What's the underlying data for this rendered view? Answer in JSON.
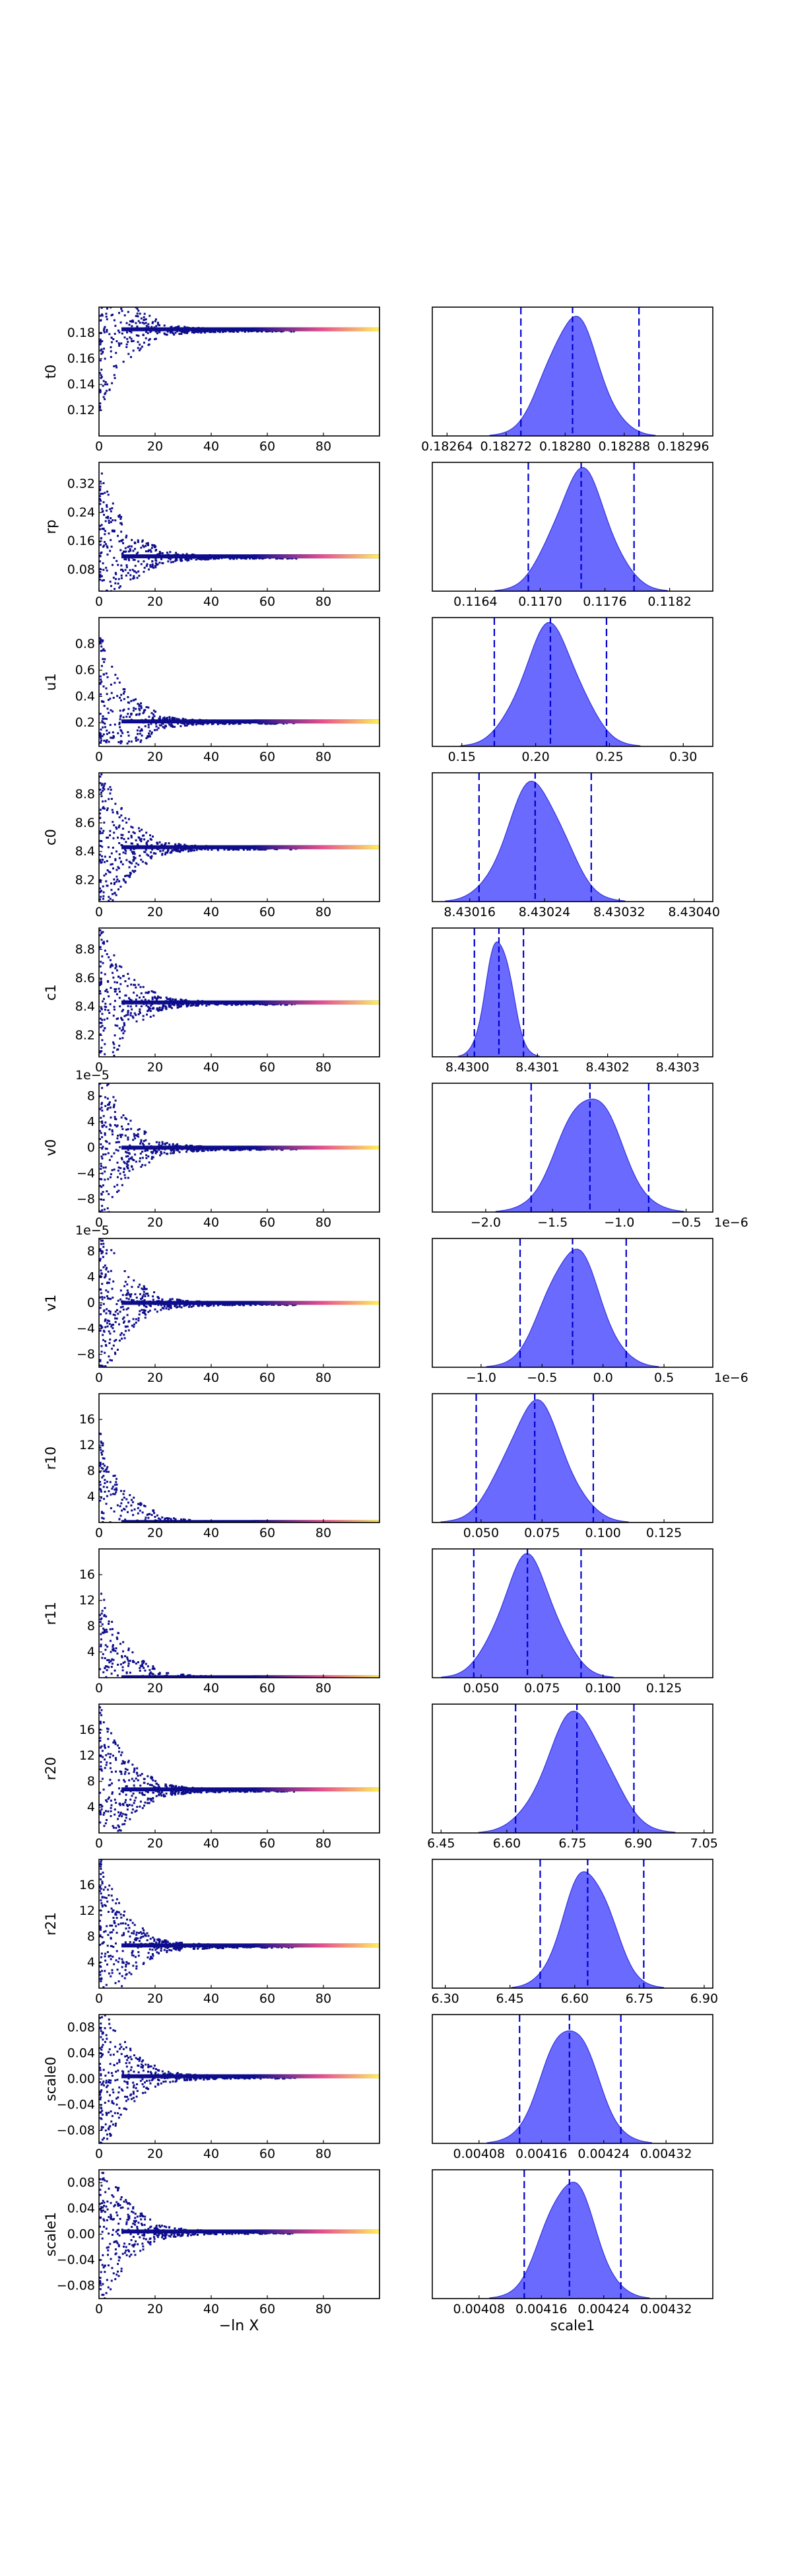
{
  "colors": {
    "trace_low": "#0d0d8c",
    "trace_mid": "#e8508c",
    "trace_high": "#fff05a",
    "kde_fill": "#5555ff",
    "kde_edge": "#3333dd",
    "quantile_line": "#0000cc"
  },
  "figure": {
    "trace_xlabel": "−ln X"
  },
  "chart_data": [
    {
      "type": "scatter",
      "param": "t0",
      "ylabel": "t0",
      "xlim": [
        0,
        100
      ],
      "xticks": [
        "0",
        "20",
        "40",
        "60",
        "80"
      ],
      "yticks": [
        {
          "v": 0.12,
          "label": "0.12"
        },
        {
          "v": 0.14,
          "label": "0.14"
        },
        {
          "v": 0.16,
          "label": "0.16"
        },
        {
          "v": 0.18,
          "label": "0.18"
        }
      ],
      "ylim": [
        0.1,
        0.2
      ],
      "converged": 0.1828,
      "kde": {
        "xlim": [
          0.18262,
          0.183
        ],
        "xticks": [
          {
            "v": 0.18264,
            "label": "0.18264"
          },
          {
            "v": 0.18272,
            "label": "0.18272"
          },
          {
            "v": 0.1828,
            "label": "0.18280"
          },
          {
            "v": 0.18288,
            "label": "0.18288"
          },
          {
            "v": 0.18296,
            "label": "0.18296"
          }
        ],
        "mean": 0.18281,
        "sd": 3.5e-05,
        "q_low": 0.18274,
        "median": 0.18281,
        "q_high": 0.1829,
        "offset": ""
      }
    },
    {
      "type": "scatter",
      "param": "rp",
      "ylabel": "rp",
      "xlim": [
        0,
        100
      ],
      "xticks": [
        "0",
        "20",
        "40",
        "60",
        "80"
      ],
      "yticks": [
        {
          "v": 0.08,
          "label": "0.08"
        },
        {
          "v": 0.16,
          "label": "0.16"
        },
        {
          "v": 0.24,
          "label": "0.24"
        },
        {
          "v": 0.32,
          "label": "0.32"
        }
      ],
      "ylim": [
        0.02,
        0.38
      ],
      "converged": 0.1174,
      "kde": {
        "xlim": [
          0.116,
          0.1186
        ],
        "xticks": [
          {
            "v": 0.1164,
            "label": "0.1164"
          },
          {
            "v": 0.117,
            "label": "0.1170"
          },
          {
            "v": 0.1176,
            "label": "0.1176"
          },
          {
            "v": 0.1182,
            "label": "0.1182"
          }
        ],
        "mean": 0.11738,
        "sd": 0.00025,
        "q_low": 0.11689,
        "median": 0.11738,
        "q_high": 0.11787,
        "offset": ""
      }
    },
    {
      "type": "scatter",
      "param": "u1",
      "ylabel": "u1",
      "xlim": [
        0,
        100
      ],
      "xticks": [
        "0",
        "20",
        "40",
        "60",
        "80"
      ],
      "yticks": [
        {
          "v": 0.2,
          "label": "0.2"
        },
        {
          "v": 0.4,
          "label": "0.4"
        },
        {
          "v": 0.6,
          "label": "0.6"
        },
        {
          "v": 0.8,
          "label": "0.8"
        }
      ],
      "ylim": [
        0.02,
        1.0
      ],
      "converged": 0.21,
      "kde": {
        "xlim": [
          0.13,
          0.32
        ],
        "xticks": [
          {
            "v": 0.15,
            "label": "0.15"
          },
          {
            "v": 0.2,
            "label": "0.20"
          },
          {
            "v": 0.25,
            "label": "0.25"
          },
          {
            "v": 0.3,
            "label": "0.30"
          }
        ],
        "mean": 0.21,
        "sd": 0.019,
        "q_low": 0.172,
        "median": 0.21,
        "q_high": 0.248,
        "offset": ""
      }
    },
    {
      "type": "scatter",
      "param": "c0",
      "ylabel": "c0",
      "xlim": [
        0,
        100
      ],
      "xticks": [
        "0",
        "20",
        "40",
        "60",
        "80"
      ],
      "yticks": [
        {
          "v": 8.2,
          "label": "8.2"
        },
        {
          "v": 8.4,
          "label": "8.4"
        },
        {
          "v": 8.6,
          "label": "8.6"
        },
        {
          "v": 8.8,
          "label": "8.8"
        }
      ],
      "ylim": [
        8.05,
        8.95
      ],
      "converged": 8.43,
      "kde": {
        "xlim": [
          8.43012,
          8.43042
        ],
        "xticks": [
          {
            "v": 8.43016,
            "label": "8.43016"
          },
          {
            "v": 8.43024,
            "label": "8.43024"
          },
          {
            "v": 8.43032,
            "label": "8.43032"
          },
          {
            "v": 8.4304,
            "label": "8.43040"
          }
        ],
        "mean": 8.43023,
        "sd": 3e-05,
        "q_low": 8.43017,
        "median": 8.43023,
        "q_high": 8.43029,
        "offset": ""
      }
    },
    {
      "type": "scatter",
      "param": "c1",
      "ylabel": "c1",
      "xlim": [
        0,
        100
      ],
      "xticks": [
        "0",
        "20",
        "40",
        "60",
        "80"
      ],
      "yticks": [
        {
          "v": 8.2,
          "label": "8.2"
        },
        {
          "v": 8.4,
          "label": "8.4"
        },
        {
          "v": 8.6,
          "label": "8.6"
        },
        {
          "v": 8.8,
          "label": "8.8"
        }
      ],
      "ylim": [
        8.05,
        8.95
      ],
      "converged": 8.43,
      "kde": {
        "xlim": [
          8.42995,
          8.43035
        ],
        "xticks": [
          {
            "v": 8.43,
            "label": "8.4300"
          },
          {
            "v": 8.4301,
            "label": "8.4301"
          },
          {
            "v": 8.4302,
            "label": "8.4302"
          },
          {
            "v": 8.4303,
            "label": "8.4303"
          }
        ],
        "mean": 8.430045,
        "sd": 1.8e-05,
        "q_low": 8.43001,
        "median": 8.430045,
        "q_high": 8.43008,
        "offset": ""
      }
    },
    {
      "type": "scatter",
      "param": "v0",
      "ylabel": "v0",
      "xlim": [
        0,
        100
      ],
      "xticks": [
        "0",
        "20",
        "40",
        "60",
        "80"
      ],
      "yoffset": "1e−5",
      "yticks": [
        {
          "v": -8,
          "label": "−8"
        },
        {
          "v": -4,
          "label": "−4"
        },
        {
          "v": 0,
          "label": "0"
        },
        {
          "v": 4,
          "label": "4"
        },
        {
          "v": 8,
          "label": "8"
        }
      ],
      "ylim": [
        -10,
        10
      ],
      "converged": 0,
      "kde": {
        "xlim": [
          -2.4,
          -0.3
        ],
        "xticks": [
          {
            "v": -2,
            "label": "−2.0"
          },
          {
            "v": -1.5,
            "label": "−1.5"
          },
          {
            "v": -1,
            "label": "−1.0"
          },
          {
            "v": -0.5,
            "label": "−0.5"
          }
        ],
        "mean": -1.22,
        "sd": 0.22,
        "q_low": -1.66,
        "median": -1.22,
        "q_high": -0.78,
        "offset": "1e−6"
      }
    },
    {
      "type": "scatter",
      "param": "v1",
      "ylabel": "v1",
      "xlim": [
        0,
        100
      ],
      "xticks": [
        "0",
        "20",
        "40",
        "60",
        "80"
      ],
      "yoffset": "1e−5",
      "yticks": [
        {
          "v": -8,
          "label": "−8"
        },
        {
          "v": -4,
          "label": "−4"
        },
        {
          "v": 0,
          "label": "0"
        },
        {
          "v": 4,
          "label": "4"
        },
        {
          "v": 8,
          "label": "8"
        }
      ],
      "ylim": [
        -10,
        10
      ],
      "converged": 0,
      "kde": {
        "xlim": [
          -1.4,
          0.9
        ],
        "xticks": [
          {
            "v": -1,
            "label": "−1.0"
          },
          {
            "v": -0.5,
            "label": "−0.5"
          },
          {
            "v": 0,
            "label": "0.0"
          },
          {
            "v": 0.5,
            "label": "0.5"
          }
        ],
        "mean": -0.25,
        "sd": 0.22,
        "q_low": -0.68,
        "median": -0.25,
        "q_high": 0.19,
        "offset": "1e−6"
      }
    },
    {
      "type": "scatter",
      "param": "r10",
      "ylabel": "r10",
      "xlim": [
        0,
        100
      ],
      "xticks": [
        "0",
        "20",
        "40",
        "60",
        "80"
      ],
      "yticks": [
        {
          "v": 4,
          "label": "4"
        },
        {
          "v": 8,
          "label": "8"
        },
        {
          "v": 12,
          "label": "12"
        },
        {
          "v": 16,
          "label": "16"
        }
      ],
      "ylim": [
        0,
        20
      ],
      "converged": 0.07,
      "kde": {
        "xlim": [
          0.03,
          0.145
        ],
        "xticks": [
          {
            "v": 0.05,
            "label": "0.050"
          },
          {
            "v": 0.075,
            "label": "0.075"
          },
          {
            "v": 0.1,
            "label": "0.100"
          },
          {
            "v": 0.125,
            "label": "0.125"
          }
        ],
        "mean": 0.072,
        "sd": 0.012,
        "q_low": 0.048,
        "median": 0.072,
        "q_high": 0.096,
        "offset": ""
      }
    },
    {
      "type": "scatter",
      "param": "r11",
      "ylabel": "r11",
      "xlim": [
        0,
        100
      ],
      "xticks": [
        "0",
        "20",
        "40",
        "60",
        "80"
      ],
      "yticks": [
        {
          "v": 4,
          "label": "4"
        },
        {
          "v": 8,
          "label": "8"
        },
        {
          "v": 12,
          "label": "12"
        },
        {
          "v": 16,
          "label": "16"
        }
      ],
      "ylim": [
        0,
        20
      ],
      "converged": 0.07,
      "kde": {
        "xlim": [
          0.03,
          0.145
        ],
        "xticks": [
          {
            "v": 0.05,
            "label": "0.050"
          },
          {
            "v": 0.075,
            "label": "0.075"
          },
          {
            "v": 0.1,
            "label": "0.100"
          },
          {
            "v": 0.125,
            "label": "0.125"
          }
        ],
        "mean": 0.069,
        "sd": 0.011,
        "q_low": 0.047,
        "median": 0.069,
        "q_high": 0.091,
        "offset": ""
      }
    },
    {
      "type": "scatter",
      "param": "r20",
      "ylabel": "r20",
      "xlim": [
        0,
        100
      ],
      "xticks": [
        "0",
        "20",
        "40",
        "60",
        "80"
      ],
      "yticks": [
        {
          "v": 4,
          "label": "4"
        },
        {
          "v": 8,
          "label": "8"
        },
        {
          "v": 12,
          "label": "12"
        },
        {
          "v": 16,
          "label": "16"
        }
      ],
      "ylim": [
        0,
        20
      ],
      "converged": 6.76,
      "kde": {
        "xlim": [
          6.43,
          7.07
        ],
        "xticks": [
          {
            "v": 6.45,
            "label": "6.45"
          },
          {
            "v": 6.6,
            "label": "6.60"
          },
          {
            "v": 6.75,
            "label": "6.75"
          },
          {
            "v": 6.9,
            "label": "6.90"
          },
          {
            "v": 7.05,
            "label": "7.05"
          }
        ],
        "mean": 6.76,
        "sd": 0.07,
        "q_low": 6.62,
        "median": 6.76,
        "q_high": 6.89,
        "offset": ""
      }
    },
    {
      "type": "scatter",
      "param": "r21",
      "ylabel": "r21",
      "xlim": [
        0,
        100
      ],
      "xticks": [
        "0",
        "20",
        "40",
        "60",
        "80"
      ],
      "yticks": [
        {
          "v": 4,
          "label": "4"
        },
        {
          "v": 8,
          "label": "8"
        },
        {
          "v": 12,
          "label": "12"
        },
        {
          "v": 16,
          "label": "16"
        }
      ],
      "ylim": [
        0,
        20
      ],
      "converged": 6.63,
      "kde": {
        "xlim": [
          6.27,
          6.92
        ],
        "xticks": [
          {
            "v": 6.3,
            "label": "6.30"
          },
          {
            "v": 6.45,
            "label": "6.45"
          },
          {
            "v": 6.6,
            "label": "6.60"
          },
          {
            "v": 6.75,
            "label": "6.75"
          },
          {
            "v": 6.9,
            "label": "6.90"
          }
        ],
        "mean": 6.63,
        "sd": 0.055,
        "q_low": 6.52,
        "median": 6.63,
        "q_high": 6.76,
        "offset": ""
      }
    },
    {
      "type": "scatter",
      "param": "scale0",
      "ylabel": "scale0",
      "xlim": [
        0,
        100
      ],
      "xticks": [
        "0",
        "20",
        "40",
        "60",
        "80"
      ],
      "yticks": [
        {
          "v": -0.08,
          "label": "−0.08"
        },
        {
          "v": -0.04,
          "label": "−0.04"
        },
        {
          "v": 0,
          "label": "0.00"
        },
        {
          "v": 0.04,
          "label": "0.04"
        },
        {
          "v": 0.08,
          "label": "0.08"
        }
      ],
      "ylim": [
        -0.1,
        0.1
      ],
      "converged": 0.0042,
      "kde": {
        "xlim": [
          0.00402,
          0.00438
        ],
        "xticks": [
          {
            "v": 0.00408,
            "label": "0.00408"
          },
          {
            "v": 0.00416,
            "label": "0.00416"
          },
          {
            "v": 0.00424,
            "label": "0.00424"
          },
          {
            "v": 0.00432,
            "label": "0.00432"
          }
        ],
        "mean": 0.004196,
        "sd": 3.3e-05,
        "q_low": 0.004132,
        "median": 0.004196,
        "q_high": 0.004262,
        "offset": ""
      }
    },
    {
      "type": "scatter",
      "param": "scale1",
      "ylabel": "scale1",
      "xlim": [
        0,
        100
      ],
      "xticks": [
        "0",
        "20",
        "40",
        "60",
        "80"
      ],
      "yticks": [
        {
          "v": -0.08,
          "label": "−0.08"
        },
        {
          "v": -0.04,
          "label": "−0.04"
        },
        {
          "v": 0,
          "label": "0.00"
        },
        {
          "v": 0.04,
          "label": "0.04"
        },
        {
          "v": 0.08,
          "label": "0.08"
        }
      ],
      "ylim": [
        -0.1,
        0.1
      ],
      "converged": 0.0042,
      "kde": {
        "xlim": [
          0.00402,
          0.00438
        ],
        "xticks": [
          {
            "v": 0.00408,
            "label": "0.00408"
          },
          {
            "v": 0.00416,
            "label": "0.00416"
          },
          {
            "v": 0.00424,
            "label": "0.00424"
          },
          {
            "v": 0.00432,
            "label": "0.00432"
          }
        ],
        "mean": 0.004196,
        "sd": 3.2e-05,
        "q_low": 0.004138,
        "median": 0.004196,
        "q_high": 0.004262,
        "offset": "",
        "xlabel": "scale1"
      }
    }
  ]
}
